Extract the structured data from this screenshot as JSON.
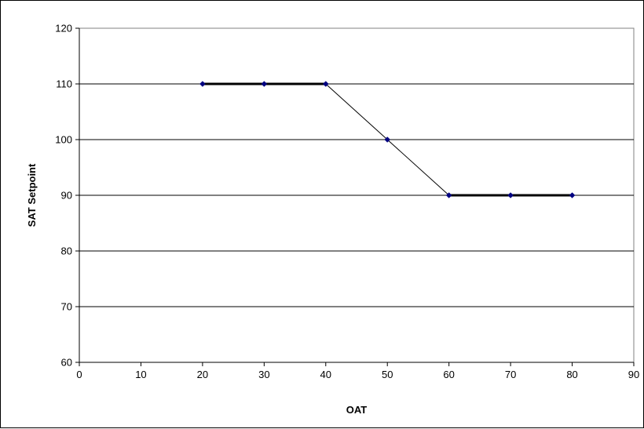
{
  "chart_data": {
    "type": "line",
    "title": "",
    "xlabel": "OAT",
    "ylabel": "SAT Setpoint",
    "xlim": [
      0,
      90
    ],
    "ylim": [
      60,
      120
    ],
    "xticks": [
      0,
      10,
      20,
      30,
      40,
      50,
      60,
      70,
      80,
      90
    ],
    "yticks": [
      60,
      70,
      80,
      90,
      100,
      110,
      120
    ],
    "grid": "horizontal",
    "legend": "none",
    "series": [
      {
        "x": [
          20,
          30,
          40,
          50,
          60,
          70,
          80
        ],
        "y": [
          110,
          110,
          110,
          100,
          90,
          90,
          90
        ],
        "color": "#000080",
        "line_color": "#000000",
        "marker": "diamond"
      }
    ]
  }
}
